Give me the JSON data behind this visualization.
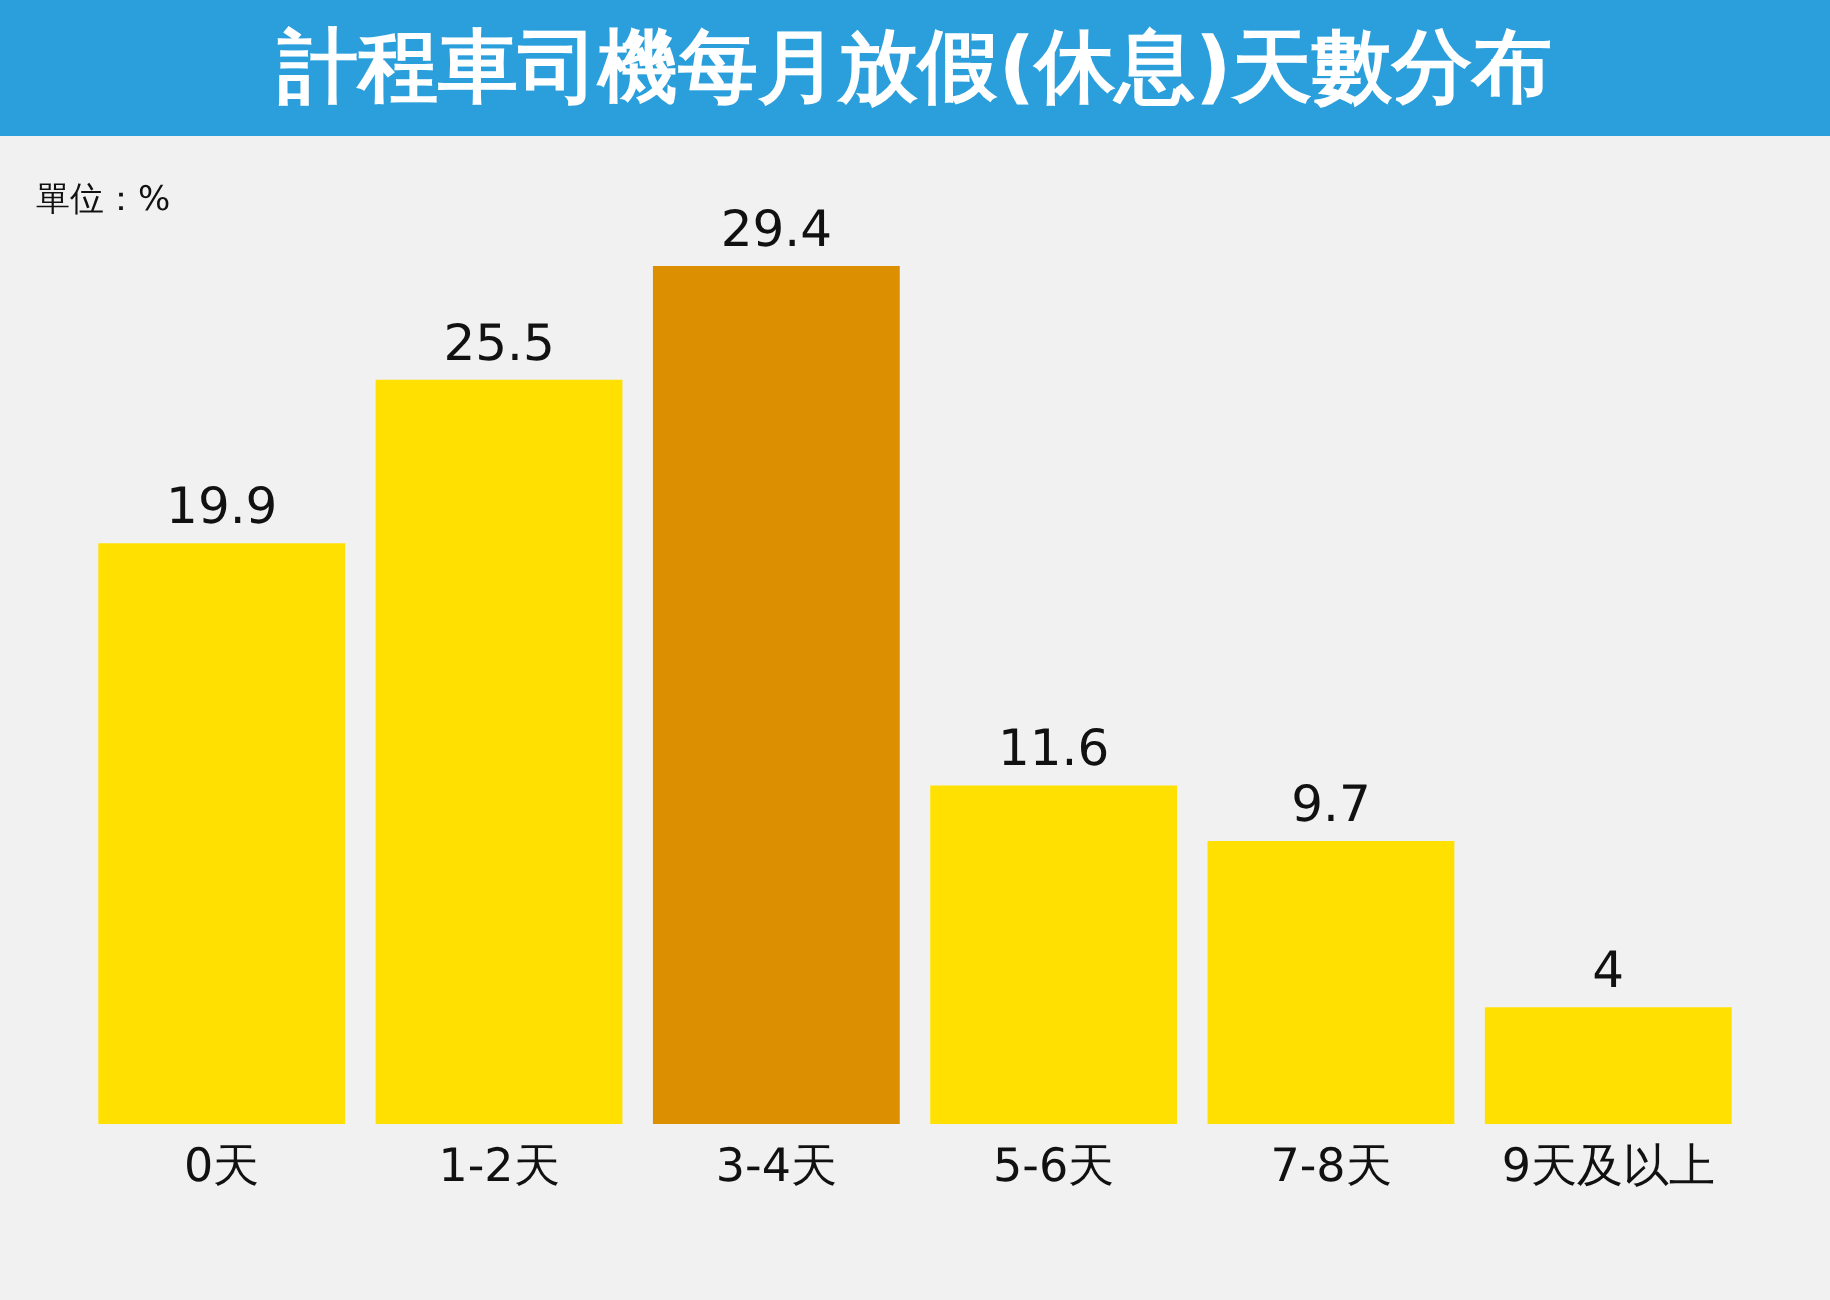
{
  "chart_data": {
    "type": "bar",
    "title": "計程車司機每月放假(休息)天數分布",
    "subtitle": "單位：%",
    "categories": [
      "0天",
      "1-2天",
      "3-4天",
      "5-6天",
      "7-8天",
      "9天及以上"
    ],
    "values": [
      19.9,
      25.5,
      29.4,
      11.6,
      9.7,
      4
    ],
    "colors": [
      "#ffe000",
      "#ffe000",
      "#dc8f00",
      "#ffe000",
      "#ffe000",
      "#ffe000"
    ],
    "data_labels": true,
    "grid": false
  }
}
